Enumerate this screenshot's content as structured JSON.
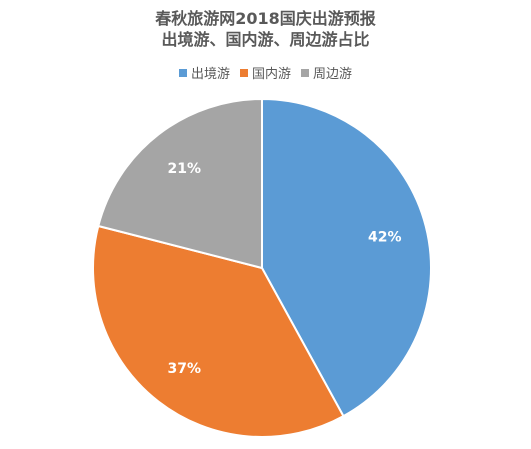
{
  "chart_data": {
    "type": "pie",
    "title_lines": [
      "春秋旅游网2018国庆出游预报",
      "出境游、国内游、周边游占比"
    ],
    "categories": [
      "出境游",
      "国内游",
      "周边游"
    ],
    "values": [
      42,
      37,
      21
    ],
    "data_labels": [
      "42%",
      "37%",
      "21%"
    ],
    "colors": [
      "#5B9BD5",
      "#ED7D31",
      "#A5A5A5"
    ],
    "legend_position": "top"
  }
}
